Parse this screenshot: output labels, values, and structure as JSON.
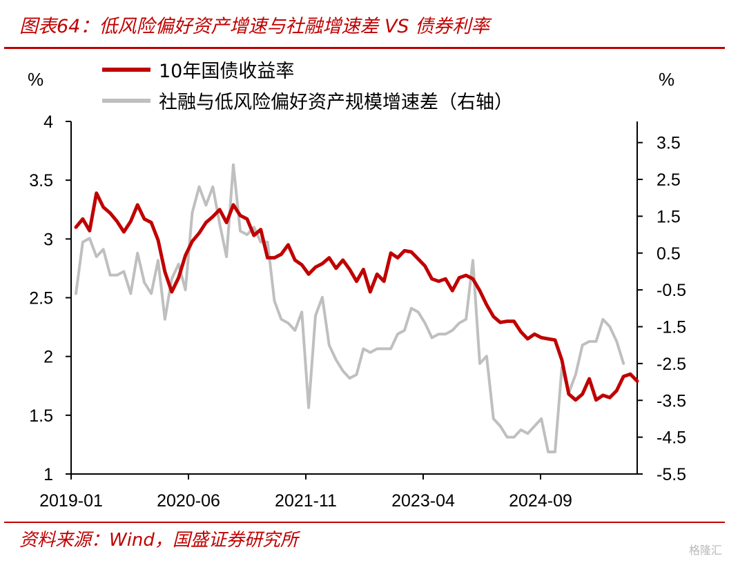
{
  "header": {
    "title": "图表64：低风险偏好资产增速与社融增速差 VS 债券利率"
  },
  "footer": {
    "source": "资料来源：Wind，国盛证券研究所",
    "watermark": "格隆汇"
  },
  "colors": {
    "accent": "#c00000",
    "series_primary": "#c00000",
    "series_secondary": "#bfbfbf"
  },
  "chart_data": {
    "type": "line",
    "title": "",
    "left_axis": {
      "label": "%",
      "ylim": [
        1,
        4
      ],
      "ticks": [
        "1",
        "1.5",
        "2",
        "2.5",
        "3",
        "3.5",
        "4"
      ]
    },
    "right_axis": {
      "label": "%",
      "ylim": [
        -5.5,
        3.5
      ],
      "ticks": [
        "-5.5",
        "-4.5",
        "-3.5",
        "-2.5",
        "-1.5",
        "-0.5",
        "0.5",
        "1.5",
        "2.5",
        "3.5"
      ]
    },
    "x_axis": {
      "start": "2019-01",
      "ticks": [
        "2019-01",
        "2020-06",
        "2021-11",
        "2023-04",
        "2024-09"
      ]
    },
    "grid": false,
    "legend_placement": "top-left",
    "series": [
      {
        "name": "10年国债收益率",
        "axis": "left",
        "color": "#c00000",
        "values": [
          3.1,
          3.17,
          3.07,
          3.39,
          3.27,
          3.22,
          3.15,
          3.06,
          3.15,
          3.29,
          3.17,
          3.14,
          2.99,
          2.72,
          2.55,
          2.67,
          2.86,
          2.98,
          3.05,
          3.14,
          3.19,
          3.25,
          3.14,
          3.29,
          3.2,
          3.17,
          3.03,
          3.08,
          2.84,
          2.84,
          2.87,
          2.95,
          2.82,
          2.78,
          2.7,
          2.76,
          2.79,
          2.84,
          2.75,
          2.82,
          2.74,
          2.64,
          2.74,
          2.55,
          2.7,
          2.64,
          2.88,
          2.84,
          2.9,
          2.89,
          2.83,
          2.77,
          2.66,
          2.64,
          2.66,
          2.56,
          2.67,
          2.69,
          2.66,
          2.56,
          2.44,
          2.34,
          2.29,
          2.3,
          2.3,
          2.21,
          2.15,
          2.19,
          2.16,
          2.15,
          2.14,
          1.97,
          1.68,
          1.63,
          1.68,
          1.81,
          1.63,
          1.67,
          1.65,
          1.71,
          1.83,
          1.85,
          1.79
        ]
      },
      {
        "name": "社融与低风险偏好资产规模增速差（右轴）",
        "axis": "right",
        "color": "#bfbfbf",
        "values": [
          -0.6,
          0.8,
          0.9,
          0.4,
          0.6,
          -0.1,
          -0.1,
          0.0,
          -0.6,
          0.5,
          -0.3,
          -0.6,
          0.3,
          -1.3,
          -0.2,
          0.2,
          -0.5,
          1.6,
          2.3,
          1.8,
          2.3,
          1.3,
          0.4,
          2.9,
          1.1,
          1.0,
          1.2,
          0.8,
          0.8,
          -0.8,
          -1.3,
          -1.4,
          -1.6,
          -1.1,
          -3.7,
          -1.2,
          -0.7,
          -2.0,
          -2.4,
          -2.7,
          -2.9,
          -2.8,
          -2.1,
          -2.2,
          -2.1,
          -2.1,
          -2.1,
          -1.7,
          -1.6,
          -1.0,
          -1.1,
          -1.4,
          -1.8,
          -1.7,
          -1.7,
          -1.6,
          -1.4,
          -1.3,
          0.3,
          -2.5,
          -2.3,
          -4.0,
          -4.2,
          -4.5,
          -4.5,
          -4.3,
          -4.4,
          -4.2,
          -4.0,
          -4.9,
          -4.9,
          -2.6,
          -3.3,
          -2.8,
          -2.0,
          -1.9,
          -1.9,
          -1.3,
          -1.5,
          -1.9,
          -2.5
        ]
      }
    ]
  }
}
